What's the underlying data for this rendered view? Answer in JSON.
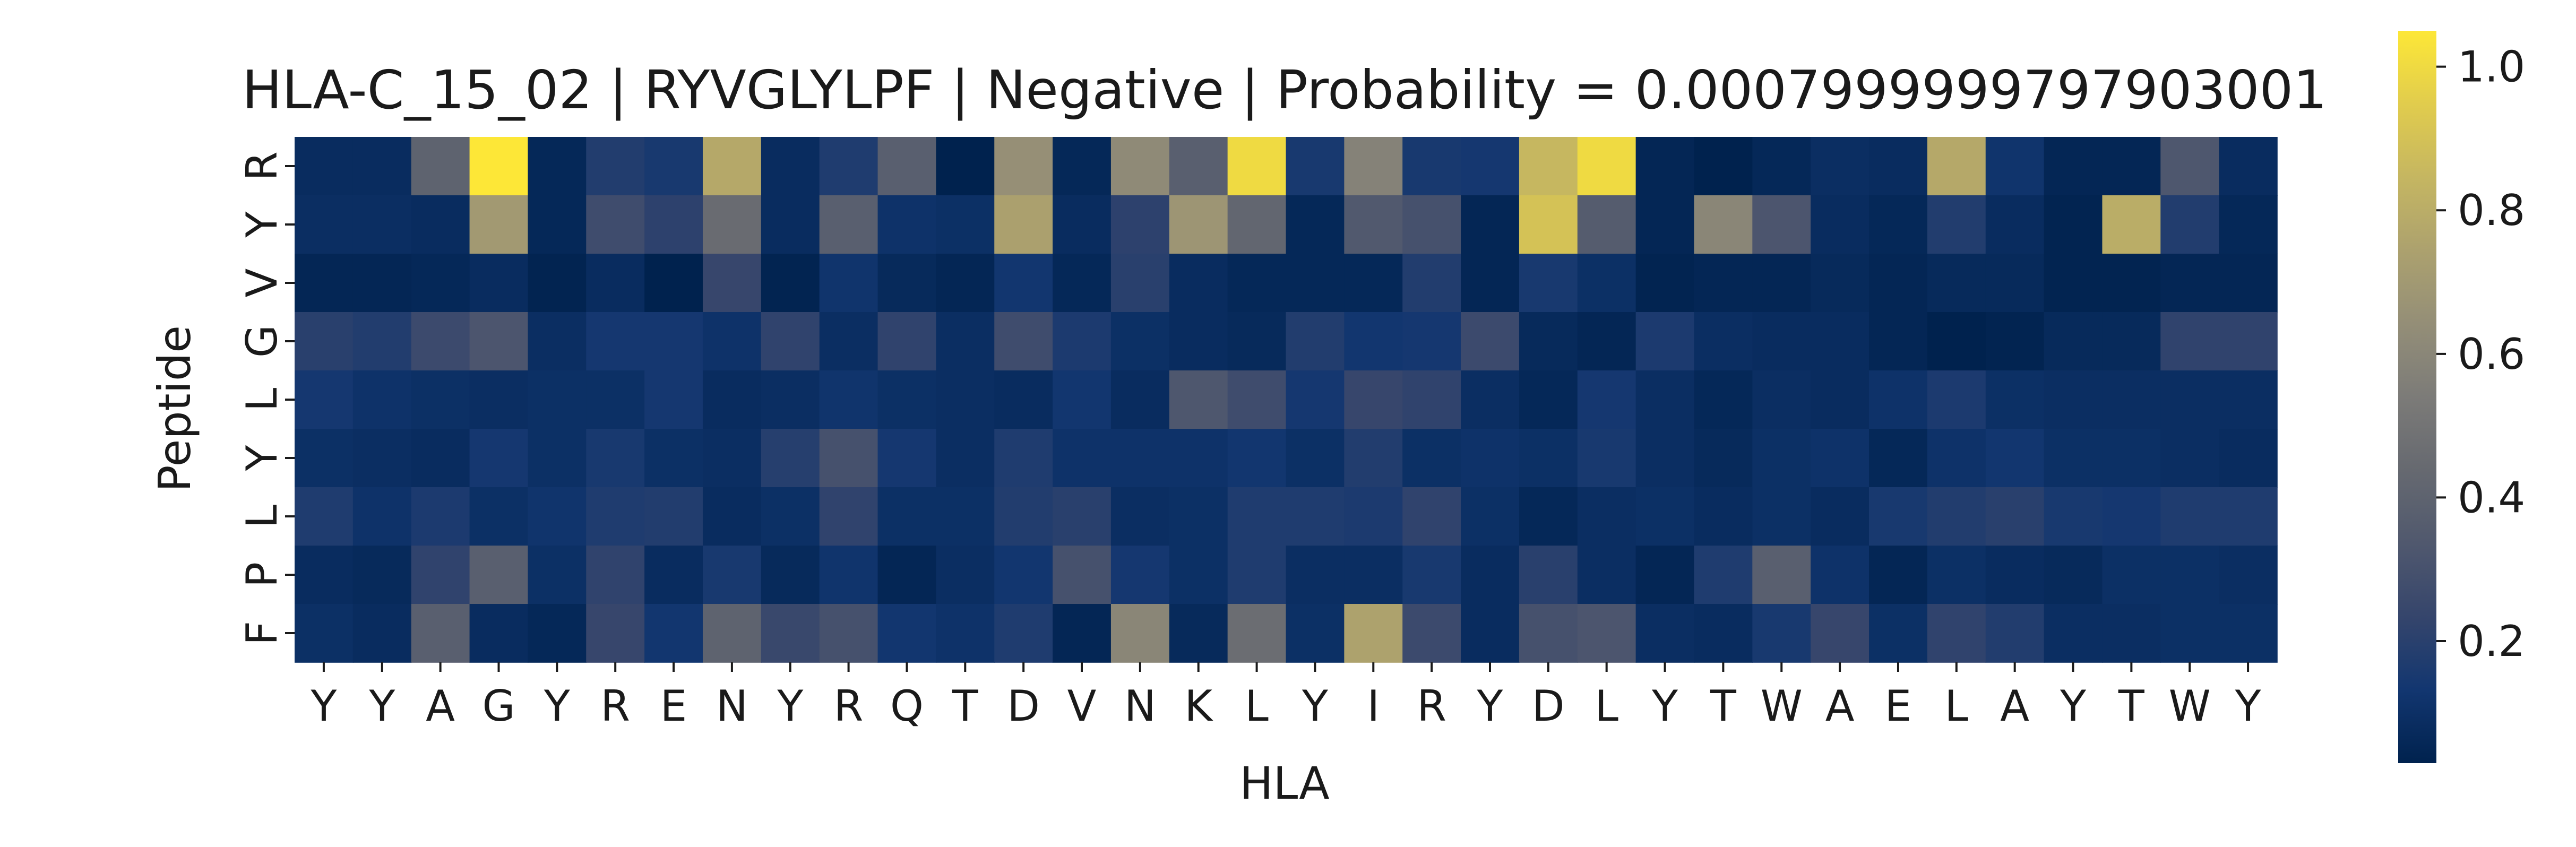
{
  "chart_data": {
    "type": "heatmap",
    "title": "HLA-C_15_02 | RYVGLYLPF | Negative | Probability = 0.0007999999797903001",
    "xlabel": "HLA",
    "ylabel": "Peptide",
    "x_categories": [
      "Y",
      "Y",
      "A",
      "G",
      "Y",
      "R",
      "E",
      "N",
      "Y",
      "R",
      "Q",
      "T",
      "D",
      "V",
      "N",
      "K",
      "L",
      "Y",
      "I",
      "R",
      "Y",
      "D",
      "L",
      "Y",
      "T",
      "W",
      "A",
      "E",
      "L",
      "A",
      "Y",
      "T",
      "W",
      "Y"
    ],
    "y_categories": [
      "R",
      "Y",
      "V",
      "G",
      "L",
      "Y",
      "L",
      "P",
      "F"
    ],
    "values": [
      [
        0.08,
        0.08,
        0.4,
        1.05,
        0.06,
        0.18,
        0.15,
        0.78,
        0.08,
        0.17,
        0.38,
        0.03,
        0.65,
        0.06,
        0.62,
        0.38,
        1.0,
        0.15,
        0.58,
        0.15,
        0.14,
        0.85,
        1.0,
        0.05,
        0.03,
        0.06,
        0.09,
        0.08,
        0.78,
        0.12,
        0.05,
        0.05,
        0.33,
        0.08
      ],
      [
        0.09,
        0.09,
        0.08,
        0.7,
        0.06,
        0.27,
        0.21,
        0.45,
        0.08,
        0.38,
        0.11,
        0.1,
        0.74,
        0.08,
        0.21,
        0.68,
        0.42,
        0.06,
        0.34,
        0.3,
        0.05,
        0.9,
        0.36,
        0.05,
        0.6,
        0.32,
        0.08,
        0.06,
        0.18,
        0.08,
        0.04,
        0.8,
        0.18,
        0.06
      ],
      [
        0.05,
        0.05,
        0.06,
        0.08,
        0.04,
        0.08,
        0.03,
        0.24,
        0.04,
        0.12,
        0.07,
        0.05,
        0.13,
        0.06,
        0.2,
        0.08,
        0.06,
        0.06,
        0.06,
        0.18,
        0.05,
        0.15,
        0.1,
        0.04,
        0.05,
        0.05,
        0.07,
        0.05,
        0.07,
        0.07,
        0.04,
        0.04,
        0.05,
        0.05
      ],
      [
        0.2,
        0.18,
        0.26,
        0.32,
        0.09,
        0.14,
        0.14,
        0.11,
        0.22,
        0.09,
        0.22,
        0.09,
        0.27,
        0.16,
        0.1,
        0.08,
        0.07,
        0.18,
        0.13,
        0.14,
        0.26,
        0.07,
        0.05,
        0.16,
        0.09,
        0.08,
        0.08,
        0.05,
        0.03,
        0.04,
        0.07,
        0.07,
        0.22,
        0.22
      ],
      [
        0.14,
        0.11,
        0.1,
        0.09,
        0.1,
        0.1,
        0.14,
        0.08,
        0.09,
        0.12,
        0.1,
        0.09,
        0.08,
        0.13,
        0.08,
        0.33,
        0.27,
        0.14,
        0.24,
        0.22,
        0.09,
        0.06,
        0.14,
        0.09,
        0.06,
        0.09,
        0.08,
        0.11,
        0.16,
        0.1,
        0.09,
        0.09,
        0.09,
        0.09
      ],
      [
        0.1,
        0.09,
        0.08,
        0.14,
        0.1,
        0.15,
        0.1,
        0.09,
        0.19,
        0.3,
        0.14,
        0.09,
        0.17,
        0.11,
        0.11,
        0.11,
        0.13,
        0.1,
        0.18,
        0.1,
        0.11,
        0.1,
        0.15,
        0.09,
        0.07,
        0.1,
        0.11,
        0.06,
        0.11,
        0.13,
        0.1,
        0.1,
        0.09,
        0.08
      ],
      [
        0.17,
        0.11,
        0.16,
        0.1,
        0.12,
        0.17,
        0.18,
        0.08,
        0.1,
        0.22,
        0.1,
        0.1,
        0.18,
        0.2,
        0.09,
        0.1,
        0.17,
        0.17,
        0.16,
        0.22,
        0.1,
        0.06,
        0.09,
        0.1,
        0.08,
        0.1,
        0.08,
        0.15,
        0.18,
        0.2,
        0.15,
        0.14,
        0.17,
        0.17
      ],
      [
        0.08,
        0.07,
        0.22,
        0.38,
        0.1,
        0.22,
        0.08,
        0.15,
        0.07,
        0.12,
        0.05,
        0.09,
        0.13,
        0.3,
        0.14,
        0.1,
        0.17,
        0.09,
        0.09,
        0.15,
        0.08,
        0.2,
        0.09,
        0.05,
        0.17,
        0.38,
        0.11,
        0.05,
        0.1,
        0.08,
        0.07,
        0.1,
        0.1,
        0.09
      ],
      [
        0.1,
        0.08,
        0.38,
        0.08,
        0.06,
        0.24,
        0.13,
        0.4,
        0.25,
        0.3,
        0.13,
        0.11,
        0.17,
        0.05,
        0.6,
        0.07,
        0.46,
        0.1,
        0.75,
        0.26,
        0.08,
        0.3,
        0.32,
        0.09,
        0.08,
        0.15,
        0.24,
        0.1,
        0.22,
        0.18,
        0.09,
        0.09,
        0.1,
        0.1
      ]
    ],
    "colorbar": {
      "range": [
        0.03,
        1.05
      ],
      "ticks": [
        "0.2",
        "0.4",
        "0.6",
        "0.8",
        "1.0"
      ],
      "tick_values": [
        0.2,
        0.4,
        0.6,
        0.8,
        1.0
      ],
      "colormap": "cividis"
    },
    "grid": false,
    "legend": "colorbar-right"
  }
}
